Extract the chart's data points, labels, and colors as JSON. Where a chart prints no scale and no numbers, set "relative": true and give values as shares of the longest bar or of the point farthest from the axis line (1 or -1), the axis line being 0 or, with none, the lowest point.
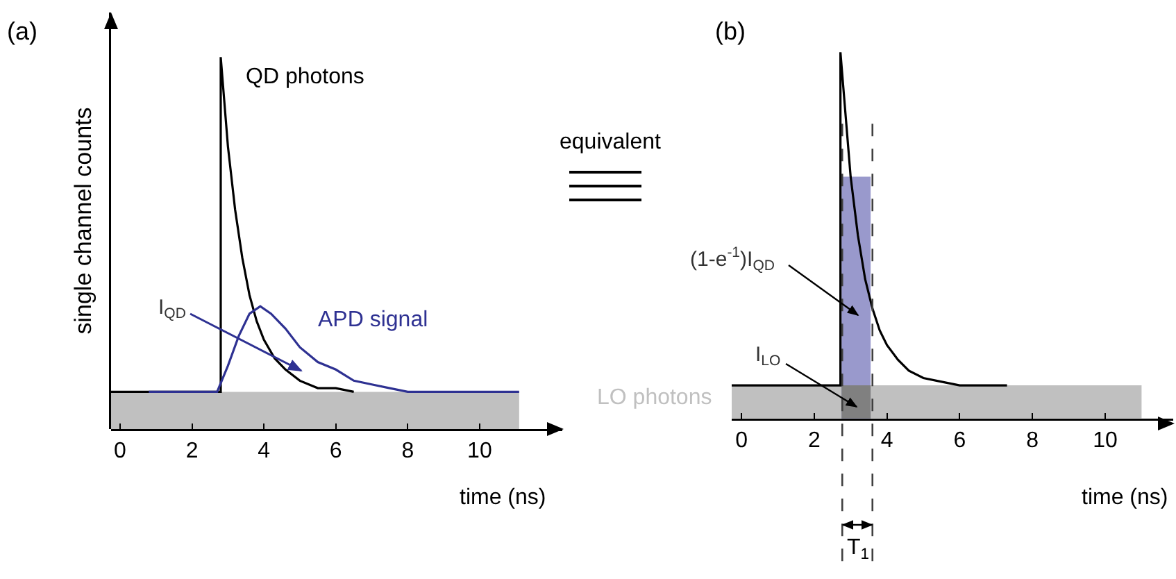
{
  "chart_data": [
    {
      "type": "line",
      "title": "(a)",
      "xlabel": "time (ns)",
      "ylabel": "single channel counts",
      "relative": true,
      "xlim": [
        -0.25,
        12.3
      ],
      "xticks": [
        0,
        2,
        4,
        6,
        8,
        10
      ],
      "annotations": [
        "I$_{QD}$",
        "equivalent"
      ],
      "series": [
        {
          "type": "area",
          "color": "#c0c0c0",
          "x": [
            -0.25,
            11.1
          ],
          "values": [
            0.1,
            0.1
          ]
        },
        {
          "name": "QD photons",
          "color": "#000000",
          "x": [
            -0.25,
            2.8,
            2.8,
            3.0,
            3.2,
            3.4,
            3.6,
            3.8,
            4.0,
            4.3,
            4.6,
            5.0,
            5.5,
            6.0,
            6.5
          ],
          "values": [
            0.1,
            0.1,
            1.0,
            0.76,
            0.59,
            0.46,
            0.36,
            0.29,
            0.24,
            0.19,
            0.16,
            0.13,
            0.11,
            0.11,
            0.1
          ]
        },
        {
          "name": "APD signal",
          "color": "#2e3192",
          "x": [
            0.8,
            2.7,
            3.0,
            3.3,
            3.6,
            3.9,
            4.2,
            4.6,
            5.0,
            5.5,
            6.0,
            6.5,
            7.0,
            7.5,
            8.0,
            11.1
          ],
          "values": [
            0.1,
            0.1,
            0.17,
            0.25,
            0.31,
            0.33,
            0.31,
            0.27,
            0.22,
            0.18,
            0.16,
            0.13,
            0.12,
            0.11,
            0.1,
            0.1
          ]
        }
      ]
    },
    {
      "type": "line",
      "title": "(b)",
      "xlabel": "time (ns)",
      "relative": true,
      "xlim": [
        -0.27,
        11.87
      ],
      "xticks": [
        0,
        2,
        4,
        6,
        8,
        10
      ],
      "annotations": [
        "(1-e$^{-1}$)I$_{QD}$",
        "I$_{LO}$",
        "T$_{1}$"
      ],
      "ref_lines": [
        {
          "axis": "x",
          "value": 2.77,
          "line_style": "dashed",
          "color": "#404040"
        },
        {
          "axis": "x",
          "value": 3.6,
          "line_style": "dashed",
          "color": "#404040"
        }
      ],
      "series": [
        {
          "type": "area",
          "name": "LO photons",
          "color": "#c0c0c0",
          "x": [
            -0.27,
            11.0
          ],
          "values": [
            0.09,
            0.09
          ]
        },
        {
          "type": "area",
          "color": "#9999cc",
          "x": [
            2.75,
            3.55
          ],
          "values": [
            0.66,
            0.66
          ]
        },
        {
          "type": "area",
          "color": "#808080",
          "x": [
            2.75,
            3.55
          ],
          "values": [
            0.09,
            0.09
          ]
        },
        {
          "color": "#000000",
          "x": [
            -0.27,
            2.72,
            2.72,
            3.0,
            3.2,
            3.4,
            3.6,
            3.8,
            4.0,
            4.3,
            4.6,
            5.0,
            5.5,
            6.0,
            7.3
          ],
          "values": [
            0.09,
            0.09,
            1.0,
            0.66,
            0.5,
            0.38,
            0.3,
            0.24,
            0.2,
            0.16,
            0.13,
            0.11,
            0.1,
            0.09,
            0.09
          ]
        }
      ]
    }
  ]
}
